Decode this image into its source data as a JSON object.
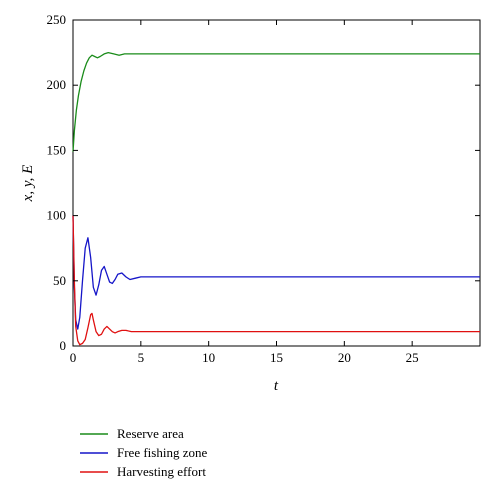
{
  "chart_data": {
    "type": "line",
    "title": "",
    "xlabel": "t",
    "ylabel": "x, y, E",
    "xlim": [
      0,
      30
    ],
    "ylim": [
      0,
      250
    ],
    "x_ticks": [
      0,
      5,
      10,
      15,
      20,
      25
    ],
    "y_ticks": [
      0,
      50,
      100,
      150,
      200,
      250
    ],
    "grid": false,
    "legend_position": "below-plot",
    "series": [
      {
        "name": "Reserve area",
        "color": "#1a8c1a",
        "x": [
          0,
          0.1,
          0.25,
          0.4,
          0.6,
          0.8,
          1.0,
          1.2,
          1.4,
          1.6,
          1.8,
          2.0,
          2.3,
          2.6,
          3.0,
          3.4,
          3.8,
          4.3,
          5.0,
          6.0,
          8.0,
          10.0,
          15.0,
          20.0,
          25.0,
          30.0
        ],
        "y": [
          149,
          165,
          181,
          192,
          203,
          211,
          217,
          221,
          223,
          222,
          221,
          222,
          224,
          225,
          224,
          223,
          224,
          224,
          224,
          224,
          224,
          224,
          224,
          224,
          224,
          224
        ]
      },
      {
        "name": "Free fishing zone",
        "color": "#1515c8",
        "x": [
          0,
          0.1,
          0.2,
          0.35,
          0.5,
          0.7,
          0.9,
          1.1,
          1.3,
          1.5,
          1.7,
          1.9,
          2.1,
          2.3,
          2.5,
          2.7,
          2.9,
          3.1,
          3.3,
          3.6,
          3.9,
          4.2,
          4.6,
          5.0,
          5.5,
          6.0,
          8.0,
          10.0,
          15.0,
          20.0,
          25.0,
          30.0
        ],
        "y": [
          100,
          45,
          20,
          13,
          22,
          50,
          75,
          83,
          68,
          45,
          39,
          47,
          58,
          61,
          55,
          49,
          48,
          51,
          55,
          56,
          53,
          51,
          52,
          53,
          53,
          53,
          53,
          53,
          53,
          53,
          53,
          53
        ]
      },
      {
        "name": "Harvesting effort",
        "color": "#e01010",
        "x": [
          0,
          0.1,
          0.2,
          0.35,
          0.5,
          0.7,
          0.9,
          1.1,
          1.3,
          1.4,
          1.5,
          1.7,
          1.9,
          2.1,
          2.3,
          2.5,
          2.7,
          2.9,
          3.1,
          3.3,
          3.6,
          3.9,
          4.3,
          4.8,
          5.5,
          6.0,
          8.0,
          10.0,
          15.0,
          20.0,
          25.0,
          30.0
        ],
        "y": [
          100,
          50,
          15,
          4,
          1,
          2,
          5,
          14,
          24,
          25,
          20,
          11,
          8,
          9,
          13,
          15,
          13,
          11,
          10,
          11,
          12,
          12,
          11,
          11,
          11,
          11,
          11,
          11,
          11,
          11,
          11,
          11
        ]
      }
    ]
  }
}
